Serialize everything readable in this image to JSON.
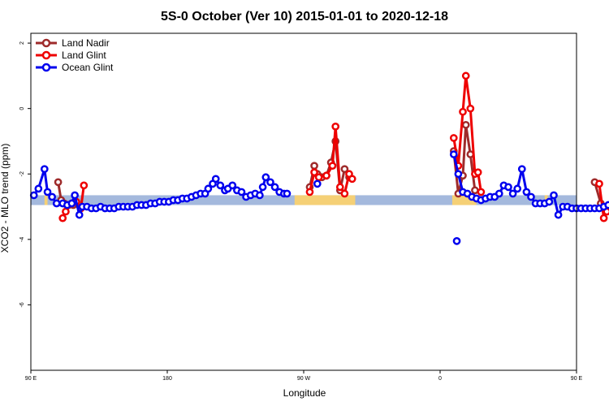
{
  "chart_data": {
    "type": "line",
    "title": "5S-0 October (Ver 10)   2015-01-01 to 2020-12-18",
    "xlabel": "Longitude",
    "ylabel": "XCO2 - MLO trend (ppm)",
    "xlim": [
      90,
      450
    ],
    "ylim": [
      -8,
      2.3
    ],
    "x_ticks": [
      {
        "value": 90,
        "label": "90 E"
      },
      {
        "value": 180,
        "label": "180"
      },
      {
        "value": 270,
        "label": "90 W"
      },
      {
        "value": 360,
        "label": "0"
      },
      {
        "value": 450,
        "label": "90 E"
      },
      {
        "value": 540,
        "label": "180"
      }
    ],
    "y_ticks": [
      {
        "value": 2,
        "label": "2"
      },
      {
        "value": 0,
        "label": "0"
      },
      {
        "value": -2,
        "label": "-2"
      },
      {
        "value": -4,
        "label": "-4"
      },
      {
        "value": -6,
        "label": "-6"
      }
    ],
    "legend_position": "top-left",
    "band": {
      "y_top": -2.65,
      "y_bottom": -2.95,
      "ocean_color": "#a4b9dd",
      "land_color": "#f5d076",
      "land_segments": [
        [
          99,
          101
        ],
        [
          264,
          301
        ],
        [
          300,
          304
        ],
        [
          368,
          384
        ],
        [
          429,
          431
        ],
        [
          488,
          500
        ]
      ]
    },
    "series": [
      {
        "name": "Land Nadir",
        "color": "#9e2b2b",
        "segments": [
          [
            [
              108,
              -2.25
            ],
            [
              110,
              -2.8
            ],
            [
              112,
              -2.9
            ],
            [
              115,
              -2.95
            ],
            [
              118,
              -2.95
            ]
          ],
          [
            [
              274,
              -2.4
            ],
            [
              277,
              -1.75
            ],
            [
              279,
              -2.0
            ],
            [
              282,
              -2.1
            ],
            [
              285,
              -2.05
            ],
            [
              288,
              -1.65
            ],
            [
              291,
              -1.0
            ],
            [
              294,
              -2.5
            ],
            [
              297,
              -1.85
            ],
            [
              300,
              -2.1
            ]
          ],
          [
            [
              369,
              -1.3
            ],
            [
              372,
              -2.6
            ],
            [
              375,
              -2.05
            ],
            [
              377,
              -0.5
            ],
            [
              380,
              -1.4
            ],
            [
              383,
              -2.5
            ]
          ],
          [
            [
              462,
              -2.25
            ],
            [
              466,
              -2.9
            ],
            [
              470,
              -3.05
            ]
          ]
        ]
      },
      {
        "name": "Land Glint",
        "color": "#ee0000",
        "segments": [
          [
            [
              111,
              -3.35
            ],
            [
              113,
              -3.15
            ],
            [
              117,
              -2.9
            ],
            [
              120,
              -2.85
            ],
            [
              123,
              -3.05
            ],
            [
              125,
              -2.35
            ]
          ],
          [
            [
              274,
              -2.55
            ],
            [
              277,
              -1.95
            ],
            [
              280,
              -2.1
            ],
            [
              285,
              -2.05
            ],
            [
              289,
              -1.75
            ],
            [
              291,
              -0.55
            ],
            [
              294,
              -2.4
            ],
            [
              297,
              -2.6
            ],
            [
              300,
              -2.0
            ],
            [
              302,
              -2.15
            ]
          ],
          [
            [
              369,
              -0.9
            ],
            [
              372,
              -1.75
            ],
            [
              375,
              -0.1
            ],
            [
              377,
              1.0
            ],
            [
              380,
              0.0
            ],
            [
              383,
              -2.0
            ],
            [
              385,
              -1.95
            ],
            [
              387,
              -2.55
            ]
          ],
          [
            [
              465,
              -2.3
            ],
            [
              468,
              -3.35
            ],
            [
              470,
              -3.15
            ],
            [
              474,
              -2.95
            ],
            [
              477,
              -2.9
            ],
            [
              479,
              -3.0
            ],
            [
              481,
              -2.35
            ]
          ]
        ]
      },
      {
        "name": "Ocean Glint",
        "color": "#0000ee",
        "segments": [
          [
            [
              92,
              -2.65
            ],
            [
              95,
              -2.45
            ],
            [
              99,
              -1.85
            ],
            [
              101,
              -2.55
            ],
            [
              104,
              -2.7
            ],
            [
              107,
              -2.9
            ],
            [
              111,
              -2.9
            ],
            [
              114,
              -2.95
            ],
            [
              117,
              -2.9
            ],
            [
              119,
              -2.65
            ],
            [
              122,
              -3.25
            ],
            [
              124,
              -3.0
            ],
            [
              127,
              -3.0
            ],
            [
              130,
              -3.05
            ],
            [
              133,
              -3.05
            ],
            [
              136,
              -3.0
            ],
            [
              139,
              -3.05
            ],
            [
              142,
              -3.05
            ],
            [
              145,
              -3.05
            ],
            [
              148,
              -3.0
            ],
            [
              151,
              -3.0
            ],
            [
              154,
              -3.0
            ],
            [
              157,
              -3.0
            ],
            [
              160,
              -2.95
            ],
            [
              163,
              -2.95
            ],
            [
              166,
              -2.95
            ],
            [
              169,
              -2.9
            ],
            [
              172,
              -2.9
            ],
            [
              175,
              -2.85
            ],
            [
              178,
              -2.85
            ],
            [
              181,
              -2.85
            ],
            [
              184,
              -2.8
            ],
            [
              187,
              -2.8
            ],
            [
              190,
              -2.75
            ],
            [
              193,
              -2.75
            ],
            [
              196,
              -2.7
            ],
            [
              199,
              -2.65
            ],
            [
              202,
              -2.6
            ],
            [
              205,
              -2.6
            ],
            [
              207,
              -2.45
            ],
            [
              210,
              -2.3
            ],
            [
              212,
              -2.15
            ],
            [
              215,
              -2.35
            ],
            [
              218,
              -2.5
            ],
            [
              220,
              -2.45
            ],
            [
              223,
              -2.35
            ],
            [
              226,
              -2.5
            ],
            [
              229,
              -2.55
            ],
            [
              232,
              -2.7
            ],
            [
              235,
              -2.65
            ],
            [
              238,
              -2.6
            ],
            [
              241,
              -2.65
            ],
            [
              243,
              -2.4
            ],
            [
              245,
              -2.1
            ],
            [
              248,
              -2.25
            ],
            [
              251,
              -2.4
            ],
            [
              254,
              -2.55
            ],
            [
              257,
              -2.6
            ],
            [
              259,
              -2.6
            ]
          ],
          [
            [
              369,
              -1.4
            ],
            [
              372,
              -2.0
            ],
            [
              375,
              -2.55
            ],
            [
              378,
              -2.6
            ],
            [
              381,
              -2.7
            ],
            [
              384,
              -2.75
            ],
            [
              387,
              -2.8
            ],
            [
              390,
              -2.75
            ],
            [
              393,
              -2.7
            ],
            [
              396,
              -2.7
            ],
            [
              399,
              -2.6
            ],
            [
              402,
              -2.35
            ],
            [
              405,
              -2.4
            ],
            [
              408,
              -2.6
            ],
            [
              411,
              -2.45
            ],
            [
              414,
              -1.85
            ],
            [
              417,
              -2.55
            ],
            [
              420,
              -2.7
            ],
            [
              423,
              -2.9
            ],
            [
              426,
              -2.9
            ],
            [
              429,
              -2.9
            ],
            [
              432,
              -2.85
            ],
            [
              435,
              -2.65
            ],
            [
              438,
              -3.25
            ],
            [
              441,
              -3.0
            ],
            [
              444,
              -3.0
            ],
            [
              447,
              -3.05
            ],
            [
              450,
              -3.05
            ],
            [
              453,
              -3.05
            ],
            [
              456,
              -3.05
            ],
            [
              459,
              -3.05
            ],
            [
              462,
              -3.05
            ],
            [
              465,
              -3.05
            ],
            [
              468,
              -3.0
            ],
            [
              471,
              -2.95
            ],
            [
              474,
              -2.95
            ],
            [
              477,
              -2.95
            ],
            [
              480,
              -3.05
            ],
            [
              483,
              -3.05
            ],
            [
              486,
              -3.05
            ],
            [
              489,
              -3.0
            ],
            [
              492,
              -2.95
            ],
            [
              495,
              -2.95
            ],
            [
              498,
              -2.95
            ]
          ]
        ],
        "isolated_points": [
          [
            371,
            -4.05
          ],
          [
            279,
            -2.3
          ]
        ]
      }
    ]
  }
}
